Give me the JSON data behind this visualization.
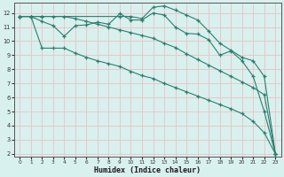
{
  "xlabel": "Humidex (Indice chaleur)",
  "bg_color": "#d8f0ee",
  "grid_color": "#e8c8c8",
  "line_color": "#2a7f6f",
  "xlim": [
    -0.5,
    23.5
  ],
  "ylim": [
    1.8,
    12.7
  ],
  "yticks": [
    2,
    3,
    4,
    5,
    6,
    7,
    8,
    9,
    10,
    11,
    12
  ],
  "xticks": [
    0,
    1,
    2,
    3,
    4,
    5,
    6,
    7,
    8,
    9,
    10,
    11,
    12,
    13,
    14,
    15,
    16,
    17,
    18,
    19,
    20,
    21,
    22,
    23
  ],
  "line1_x": [
    0,
    1,
    2,
    3,
    4,
    5,
    6,
    7,
    8,
    9,
    10,
    11,
    12,
    13,
    14,
    15,
    16,
    17,
    18,
    19,
    20,
    21,
    22,
    23
  ],
  "line1_y": [
    11.75,
    11.75,
    11.4,
    11.1,
    10.35,
    11.1,
    11.15,
    11.35,
    11.2,
    11.95,
    11.5,
    11.5,
    12.0,
    11.85,
    11.0,
    10.55,
    10.5,
    10.1,
    9.0,
    9.3,
    8.6,
    7.5,
    5.0,
    2.0
  ],
  "line2_x": [
    0,
    1,
    2,
    3,
    4,
    5,
    6,
    7,
    8,
    9,
    10,
    11,
    12,
    13,
    14,
    15,
    16,
    17,
    18,
    19,
    20,
    21,
    22,
    23
  ],
  "line2_y": [
    11.75,
    11.75,
    9.5,
    9.5,
    9.5,
    9.15,
    8.85,
    8.6,
    8.4,
    8.2,
    7.85,
    7.55,
    7.35,
    7.0,
    6.7,
    6.4,
    6.1,
    5.8,
    5.5,
    5.2,
    4.85,
    4.3,
    3.5,
    2.0
  ],
  "line3_x": [
    0,
    1,
    2,
    3,
    4,
    5,
    6,
    7,
    8,
    9,
    10,
    11,
    12,
    13,
    14,
    15,
    16,
    17,
    18,
    19,
    20,
    21,
    22,
    23
  ],
  "line3_y": [
    11.75,
    11.75,
    11.75,
    11.75,
    11.75,
    11.6,
    11.4,
    11.2,
    11.0,
    10.8,
    10.6,
    10.4,
    10.2,
    9.85,
    9.55,
    9.1,
    8.7,
    8.3,
    7.9,
    7.5,
    7.1,
    6.7,
    6.2,
    2.0
  ],
  "line4_x": [
    0,
    1,
    2,
    9,
    10,
    11,
    12,
    13,
    14,
    15,
    16,
    17,
    18,
    19,
    20,
    21,
    22,
    23
  ],
  "line4_y": [
    11.75,
    11.75,
    11.75,
    11.75,
    11.75,
    11.6,
    12.4,
    12.5,
    12.2,
    11.85,
    11.5,
    10.7,
    9.85,
    9.35,
    8.85,
    8.6,
    7.5,
    2.0
  ]
}
